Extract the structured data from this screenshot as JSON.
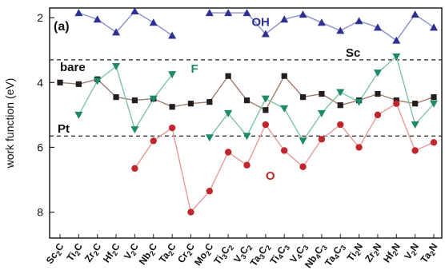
{
  "chart_data": {
    "type": "line",
    "panel_label": "(a)",
    "ylabel": "work function (eV)",
    "ylim": [
      1.7,
      8.8
    ],
    "y_inverted": true,
    "yticks": [
      2,
      4,
      6,
      8
    ],
    "categories": [
      {
        "base": "Sc",
        "s1": "2",
        "rest": "C",
        "s2": ""
      },
      {
        "base": "Ti",
        "s1": "2",
        "rest": "C",
        "s2": ""
      },
      {
        "base": "Zr",
        "s1": "2",
        "rest": "C",
        "s2": ""
      },
      {
        "base": "Hf",
        "s1": "2",
        "rest": "C",
        "s2": ""
      },
      {
        "base": "V",
        "s1": "2",
        "rest": "C",
        "s2": ""
      },
      {
        "base": "Nb",
        "s1": "2",
        "rest": "C",
        "s2": ""
      },
      {
        "base": "Ta",
        "s1": "2",
        "rest": "C",
        "s2": ""
      },
      {
        "base": "Cr",
        "s1": "2",
        "rest": "C",
        "s2": ""
      },
      {
        "base": "Mo",
        "s1": "2",
        "rest": "C",
        "s2": ""
      },
      {
        "base": "Ti",
        "s1": "3",
        "rest": "C",
        "s2": "2"
      },
      {
        "base": "V",
        "s1": "3",
        "rest": "C",
        "s2": "2"
      },
      {
        "base": "Ta",
        "s1": "3",
        "rest": "C",
        "s2": "2"
      },
      {
        "base": "Ti",
        "s1": "4",
        "rest": "C",
        "s2": "3"
      },
      {
        "base": "V",
        "s1": "4",
        "rest": "C",
        "s2": "3"
      },
      {
        "base": "Nb",
        "s1": "4",
        "rest": "C",
        "s2": "3"
      },
      {
        "base": "Ta",
        "s1": "4",
        "rest": "C",
        "s2": "3"
      },
      {
        "base": "Ti",
        "s1": "2",
        "rest": "N",
        "s2": ""
      },
      {
        "base": "Zr",
        "s1": "2",
        "rest": "N",
        "s2": ""
      },
      {
        "base": "Hf",
        "s1": "2",
        "rest": "N",
        "s2": ""
      },
      {
        "base": "V",
        "s1": "2",
        "rest": "N",
        "s2": ""
      },
      {
        "base": "Ta",
        "s1": "2",
        "rest": "N",
        "s2": ""
      }
    ],
    "reference_lines": [
      {
        "label": "Sc",
        "value": 3.3
      },
      {
        "label": "Pt",
        "value": 5.65
      }
    ],
    "series": [
      {
        "name": "OH",
        "color": "#2e3192",
        "line_color": "#8b8fd0",
        "marker": "triangle-up",
        "values": [
          null,
          1.85,
          2.05,
          2.45,
          1.8,
          2.15,
          2.55,
          null,
          1.85,
          1.85,
          1.85,
          2.5,
          2.05,
          1.9,
          2.15,
          2.4,
          2.1,
          2.3,
          2.7,
          1.9,
          2.3
        ]
      },
      {
        "name": "bare",
        "color": "#231f20",
        "line_color": "#a07c6e",
        "marker": "square",
        "values": [
          4.0,
          4.05,
          3.9,
          4.45,
          4.55,
          4.5,
          4.75,
          4.65,
          4.6,
          3.8,
          4.55,
          4.85,
          3.8,
          4.45,
          4.35,
          4.7,
          4.55,
          4.35,
          4.55,
          4.65,
          4.45
        ]
      },
      {
        "name": "F",
        "color": "#1e8a6a",
        "line_color": "#7fc4a2",
        "marker": "triangle-down",
        "values": [
          null,
          5.0,
          3.95,
          3.5,
          5.45,
          4.5,
          3.75,
          null,
          5.7,
          4.95,
          5.65,
          4.5,
          4.8,
          5.8,
          4.95,
          4.3,
          4.6,
          3.7,
          3.2,
          5.3,
          4.65
        ]
      },
      {
        "name": "O",
        "color": "#c0272d",
        "line_color": "#e79a9a",
        "marker": "circle",
        "values": [
          null,
          null,
          null,
          null,
          6.65,
          5.8,
          5.4,
          8.0,
          7.35,
          6.15,
          6.55,
          5.3,
          6.1,
          6.6,
          5.75,
          5.3,
          6.0,
          5.0,
          4.65,
          6.1,
          5.85
        ]
      }
    ],
    "annotations": [
      {
        "text": "OH",
        "at_category": 10.25,
        "at_value": 2.25
      },
      {
        "text": "bare",
        "at_category": 0.0,
        "at_value": 3.65
      },
      {
        "text": "F",
        "at_category": 7.0,
        "at_value": 3.7
      },
      {
        "text": "O",
        "at_category": 11.0,
        "at_value": 7.0
      }
    ]
  }
}
